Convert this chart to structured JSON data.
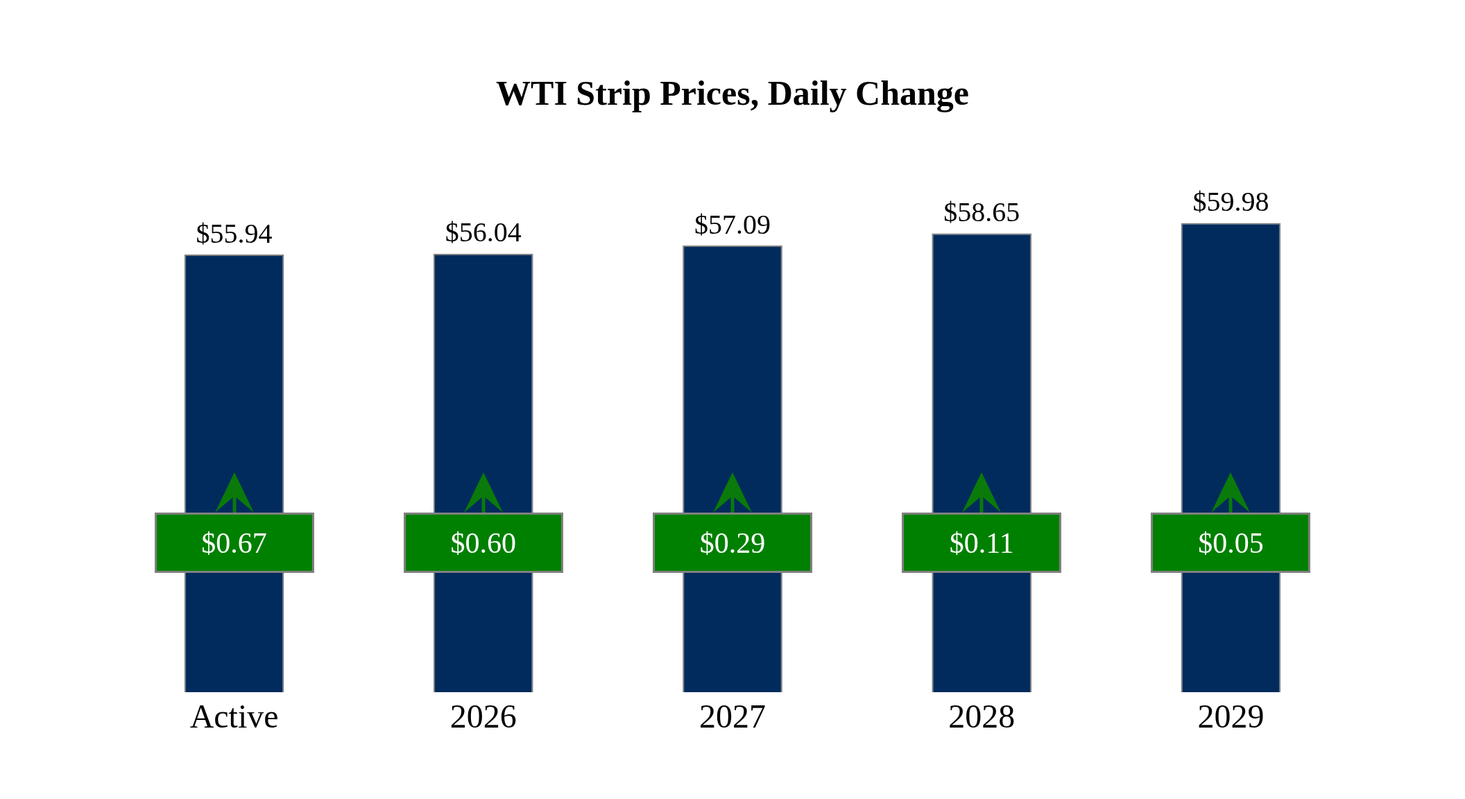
{
  "chart_data": {
    "type": "bar",
    "title": "WTI Strip Prices, Daily Change",
    "categories": [
      "Active",
      "2026",
      "2027",
      "2028",
      "2029"
    ],
    "values": [
      55.94,
      56.04,
      57.09,
      58.65,
      59.98
    ],
    "value_labels": [
      "$55.94",
      "$56.04",
      "$57.09",
      "$58.65",
      "$59.98"
    ],
    "color": "#002b5c",
    "annotations": [
      "$0.67",
      "$0.60",
      "$0.29",
      "$0.11",
      "$0.05"
    ],
    "grid": false,
    "legend": false
  }
}
